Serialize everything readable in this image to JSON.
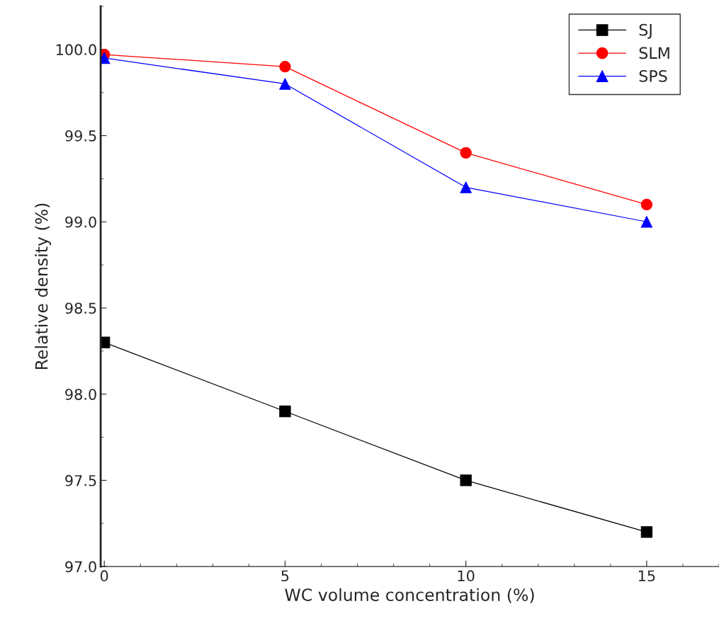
{
  "chart_data": {
    "type": "line",
    "xlabel": "WC volume concentration (%)",
    "ylabel": "Relative density (%)",
    "x": [
      0,
      5,
      10,
      15
    ],
    "series": [
      {
        "name": "SJ",
        "color": "#000000",
        "marker": "square",
        "values": [
          98.3,
          97.9,
          97.5,
          97.2
        ]
      },
      {
        "name": "SLM",
        "color": "#ff0000",
        "marker": "circle",
        "values": [
          99.97,
          99.9,
          99.4,
          99.1
        ]
      },
      {
        "name": "SPS",
        "color": "#0000ff",
        "marker": "triangle",
        "values": [
          99.95,
          99.8,
          99.2,
          99.0
        ]
      }
    ],
    "xlim": [
      -0.1,
      17
    ],
    "xticks": [
      0,
      5,
      10,
      15
    ],
    "ylim": [
      97.0,
      100.25
    ],
    "yticks": [
      {
        "value": 97.0,
        "label": "97.0"
      },
      {
        "value": 97.5,
        "label": "97.5"
      },
      {
        "value": 98.0,
        "label": "98.0"
      },
      {
        "value": 98.5,
        "label": "98.5"
      },
      {
        "value": 99.0,
        "label": "99.0"
      },
      {
        "value": 99.5,
        "label": "99.5"
      },
      {
        "value": 100.0,
        "label": "100.0"
      }
    ],
    "grid": false,
    "legend": "top right",
    "line_style": "solid"
  }
}
